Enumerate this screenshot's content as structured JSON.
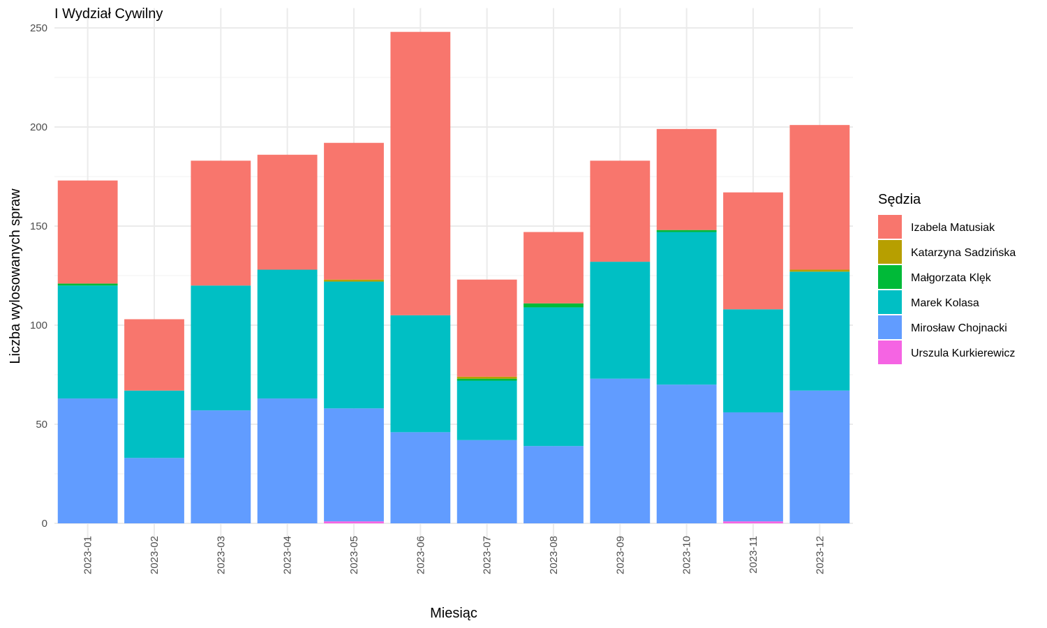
{
  "chart_data": {
    "type": "bar",
    "stacked": true,
    "title": "I Wydział Cywilny",
    "xlabel": "Miesiąc",
    "ylabel": "Liczba wylosowanych spraw",
    "ylim": [
      0,
      260
    ],
    "yticks": [
      0,
      50,
      100,
      150,
      200,
      250
    ],
    "grid": true,
    "legend_title": "Sędzia",
    "legend_position": "right",
    "categories": [
      "2023-01",
      "2023-02",
      "2023-03",
      "2023-04",
      "2023-05",
      "2023-06",
      "2023-07",
      "2023-08",
      "2023-09",
      "2023-10",
      "2023-11",
      "2023-12"
    ],
    "series": [
      {
        "name": "Izabela Matusiak",
        "color": "#F8766D",
        "values": [
          52,
          36,
          63,
          58,
          69,
          143,
          49,
          36,
          51,
          51,
          59,
          73
        ]
      },
      {
        "name": "Katarzyna Sadzińska",
        "color": "#B79F00",
        "values": [
          0,
          0,
          0,
          0,
          1,
          0,
          1,
          0,
          0,
          0,
          0,
          1
        ]
      },
      {
        "name": "Małgorzata Klęk",
        "color": "#00BA38",
        "values": [
          1,
          0,
          0,
          0,
          0,
          0,
          1,
          2,
          0,
          1,
          0,
          0
        ]
      },
      {
        "name": "Marek Kolasa",
        "color": "#00BFC4",
        "values": [
          57,
          34,
          63,
          65,
          64,
          59,
          30,
          70,
          59,
          77,
          52,
          60
        ]
      },
      {
        "name": "Mirosław Chojnacki",
        "color": "#619CFF",
        "values": [
          63,
          33,
          57,
          63,
          57,
          46,
          42,
          39,
          73,
          70,
          55,
          67
        ]
      },
      {
        "name": "Urszula Kurkierewicz",
        "color": "#F564E3",
        "values": [
          0,
          0,
          0,
          0,
          1,
          0,
          0,
          0,
          0,
          0,
          1,
          0
        ]
      }
    ]
  }
}
